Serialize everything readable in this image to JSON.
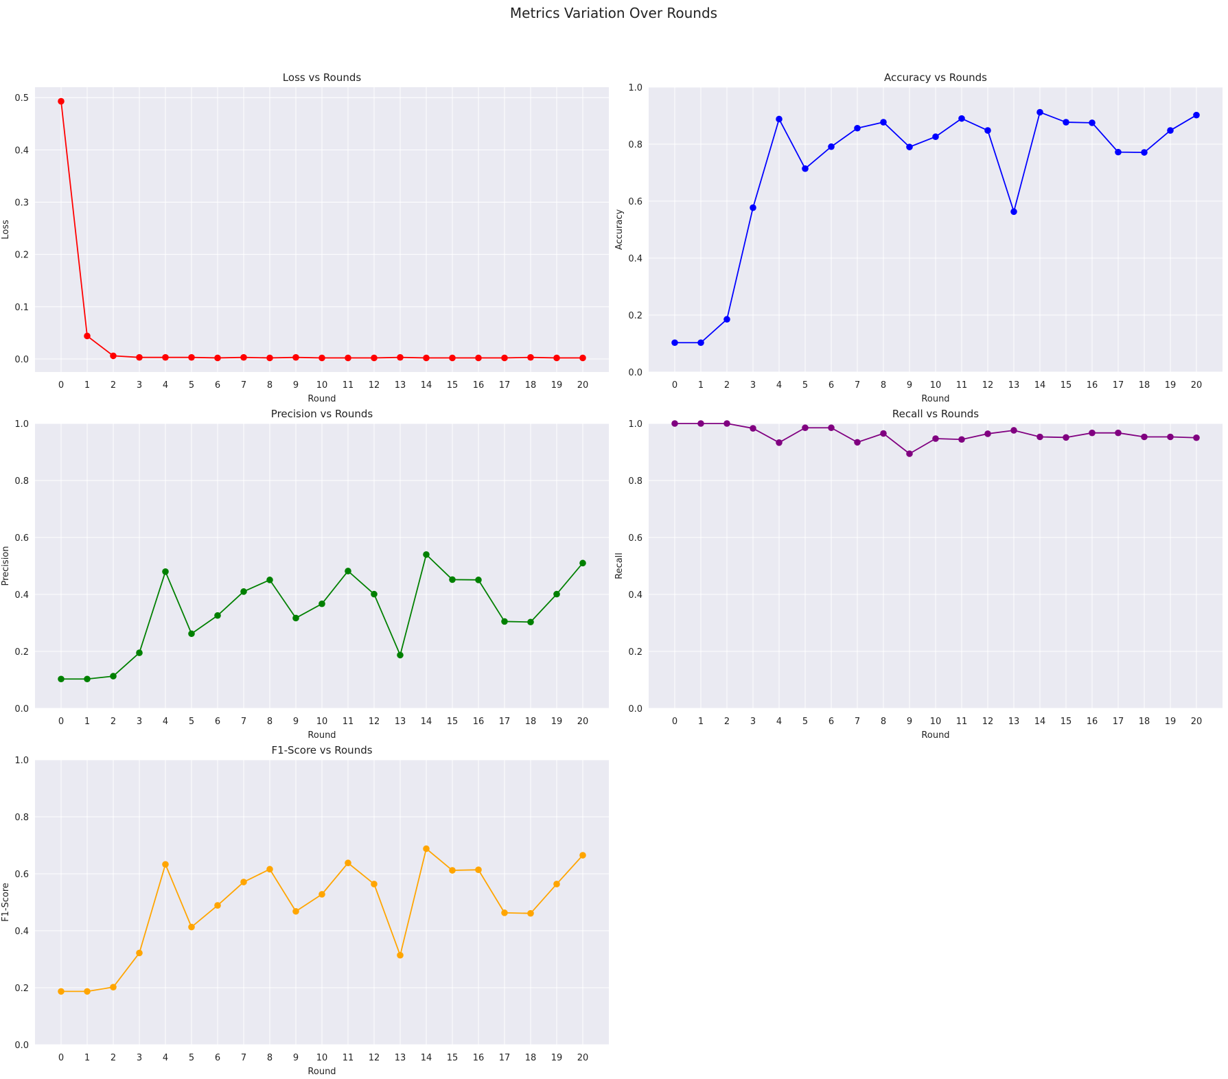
{
  "figure": {
    "title": "Metrics Variation Over Rounds"
  },
  "chart_data": [
    {
      "type": "line",
      "title": "Loss vs Rounds",
      "xlabel": "Round",
      "ylabel": "Loss",
      "x": [
        0,
        1,
        2,
        3,
        4,
        5,
        6,
        7,
        8,
        9,
        10,
        11,
        12,
        13,
        14,
        15,
        16,
        17,
        18,
        19,
        20
      ],
      "ylim": [
        -0.025,
        0.52
      ],
      "yticks": [
        0.0,
        0.1,
        0.2,
        0.3,
        0.4,
        0.5
      ],
      "ytick_labels": [
        "0.0",
        "0.1",
        "0.2",
        "0.3",
        "0.4",
        "0.5"
      ],
      "grid": true,
      "series": [
        {
          "color": "#ff0000",
          "values": [
            0.493,
            0.044,
            0.006,
            0.003,
            0.003,
            0.003,
            0.002,
            0.003,
            0.002,
            0.003,
            0.002,
            0.002,
            0.002,
            0.003,
            0.002,
            0.002,
            0.002,
            0.002,
            0.003,
            0.002,
            0.002
          ]
        }
      ]
    },
    {
      "type": "line",
      "title": "Accuracy vs Rounds",
      "xlabel": "Round",
      "ylabel": "Accuracy",
      "x": [
        0,
        1,
        2,
        3,
        4,
        5,
        6,
        7,
        8,
        9,
        10,
        11,
        12,
        13,
        14,
        15,
        16,
        17,
        18,
        19,
        20
      ],
      "ylim": [
        0.0,
        1.0
      ],
      "yticks": [
        0.0,
        0.2,
        0.4,
        0.6,
        0.8,
        1.0
      ],
      "ytick_labels": [
        "0.0",
        "0.2",
        "0.4",
        "0.6",
        "0.8",
        "1.0"
      ],
      "grid": true,
      "series": [
        {
          "color": "#0000ff",
          "values": [
            0.103,
            0.103,
            0.185,
            0.577,
            0.888,
            0.714,
            0.791,
            0.856,
            0.877,
            0.79,
            0.826,
            0.89,
            0.848,
            0.563,
            0.912,
            0.877,
            0.875,
            0.772,
            0.771,
            0.848,
            0.902
          ]
        }
      ]
    },
    {
      "type": "line",
      "title": "Precision vs Rounds",
      "xlabel": "Round",
      "ylabel": "Precision",
      "x": [
        0,
        1,
        2,
        3,
        4,
        5,
        6,
        7,
        8,
        9,
        10,
        11,
        12,
        13,
        14,
        15,
        16,
        17,
        18,
        19,
        20
      ],
      "ylim": [
        0.0,
        1.0
      ],
      "yticks": [
        0.0,
        0.2,
        0.4,
        0.6,
        0.8,
        1.0
      ],
      "ytick_labels": [
        "0.0",
        "0.2",
        "0.4",
        "0.6",
        "0.8",
        "1.0"
      ],
      "grid": true,
      "series": [
        {
          "color": "#008000",
          "values": [
            0.103,
            0.103,
            0.113,
            0.195,
            0.48,
            0.262,
            0.326,
            0.41,
            0.451,
            0.317,
            0.367,
            0.482,
            0.401,
            0.187,
            0.54,
            0.452,
            0.451,
            0.305,
            0.303,
            0.401,
            0.51
          ]
        }
      ]
    },
    {
      "type": "line",
      "title": "Recall vs Rounds",
      "xlabel": "Round",
      "ylabel": "Recall",
      "x": [
        0,
        1,
        2,
        3,
        4,
        5,
        6,
        7,
        8,
        9,
        10,
        11,
        12,
        13,
        14,
        15,
        16,
        17,
        18,
        19,
        20
      ],
      "ylim": [
        0.0,
        1.0
      ],
      "yticks": [
        0.0,
        0.2,
        0.4,
        0.6,
        0.8,
        1.0
      ],
      "ytick_labels": [
        "0.0",
        "0.2",
        "0.4",
        "0.6",
        "0.8",
        "1.0"
      ],
      "grid": true,
      "series": [
        {
          "color": "#800080",
          "values": [
            1.0,
            1.0,
            1.0,
            0.983,
            0.933,
            0.985,
            0.985,
            0.934,
            0.965,
            0.894,
            0.947,
            0.944,
            0.964,
            0.976,
            0.953,
            0.951,
            0.967,
            0.967,
            0.953,
            0.953,
            0.95
          ]
        }
      ]
    },
    {
      "type": "line",
      "title": "F1-Score vs Rounds",
      "xlabel": "Round",
      "ylabel": "F1-Score",
      "x": [
        0,
        1,
        2,
        3,
        4,
        5,
        6,
        7,
        8,
        9,
        10,
        11,
        12,
        13,
        14,
        15,
        16,
        17,
        18,
        19,
        20
      ],
      "ylim": [
        0.0,
        1.0
      ],
      "yticks": [
        0.0,
        0.2,
        0.4,
        0.6,
        0.8,
        1.0
      ],
      "ytick_labels": [
        "0.0",
        "0.2",
        "0.4",
        "0.6",
        "0.8",
        "1.0"
      ],
      "grid": true,
      "series": [
        {
          "color": "#ffa500",
          "values": [
            0.187,
            0.187,
            0.202,
            0.322,
            0.633,
            0.413,
            0.489,
            0.571,
            0.616,
            0.468,
            0.528,
            0.638,
            0.564,
            0.314,
            0.688,
            0.612,
            0.614,
            0.463,
            0.461,
            0.564,
            0.665
          ]
        }
      ]
    }
  ]
}
